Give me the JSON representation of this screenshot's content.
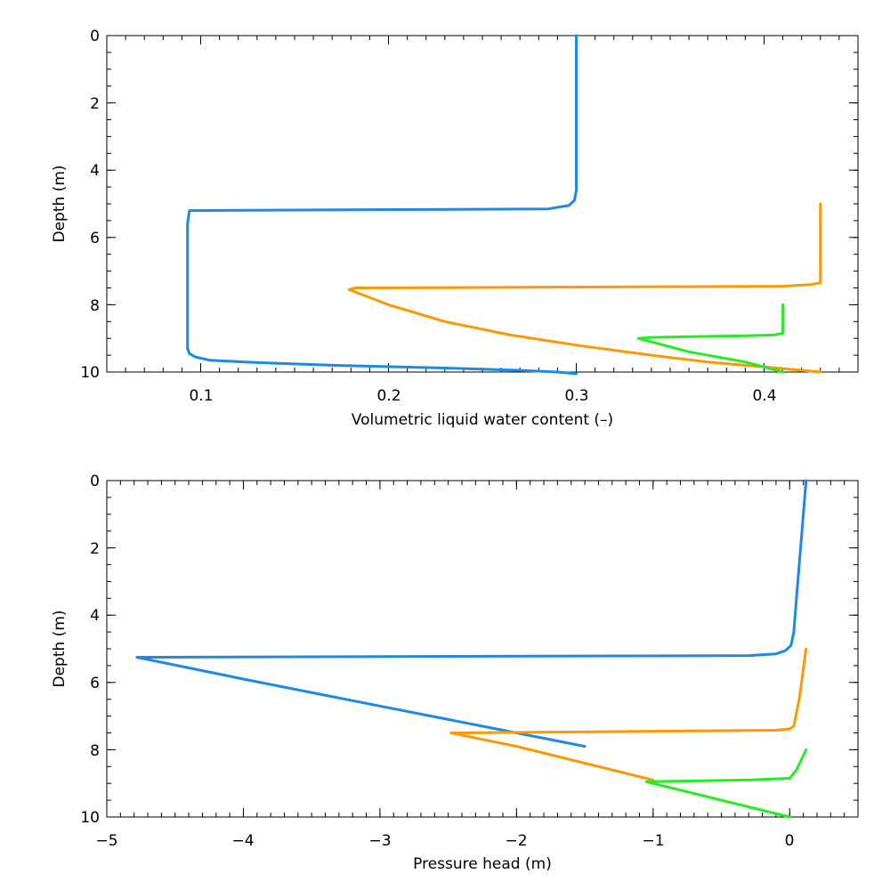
{
  "chart_data": [
    {
      "type": "line",
      "title": "",
      "xlabel": "Volumetric liquid water content (–)",
      "ylabel": "Depth (m)",
      "xlim": [
        0.05,
        0.45
      ],
      "ylim": [
        0,
        10
      ],
      "y_inverted": true,
      "xticks": [
        0.1,
        0.2,
        0.3,
        0.4
      ],
      "xtick_labels": [
        "0.1",
        "0.2",
        "0.3",
        "0.4"
      ],
      "yticks": [
        0,
        2,
        4,
        6,
        8,
        10
      ],
      "ytick_labels": [
        "0",
        "2",
        "4",
        "6",
        "8",
        "10"
      ],
      "x_minor_step": 0.01,
      "y_minor_step": 0.5,
      "series": [
        {
          "color": "#1e88e5",
          "x": [
            0.3,
            0.3,
            0.3,
            0.299,
            0.296,
            0.285,
            0.094,
            0.093,
            0.093,
            0.094,
            0.097,
            0.105,
            0.13,
            0.17,
            0.23,
            0.27,
            0.29,
            0.3
          ],
          "y": [
            0,
            3.0,
            4.6,
            4.9,
            5.05,
            5.15,
            5.2,
            5.6,
            9.3,
            9.45,
            9.55,
            9.65,
            9.72,
            9.8,
            9.88,
            9.95,
            10.0,
            10.05
          ]
        },
        {
          "color": "#ff9800",
          "x": [
            0.43,
            0.43,
            0.425,
            0.41,
            0.182,
            0.179,
            0.2,
            0.23,
            0.265,
            0.3,
            0.34,
            0.37,
            0.4,
            0.43
          ],
          "y": [
            5.0,
            7.35,
            7.4,
            7.45,
            7.5,
            7.55,
            8.0,
            8.5,
            8.9,
            9.2,
            9.5,
            9.7,
            9.85,
            10.0
          ]
        },
        {
          "color": "#22ee22",
          "x": [
            0.41,
            0.41,
            0.405,
            0.39,
            0.34,
            0.333,
            0.36,
            0.39,
            0.41
          ],
          "y": [
            8.0,
            8.85,
            8.9,
            8.92,
            8.97,
            9.0,
            9.4,
            9.7,
            10.0
          ]
        }
      ]
    },
    {
      "type": "line",
      "title": "",
      "xlabel": "Pressure head (m)",
      "ylabel": "Depth (m)",
      "xlim": [
        -5,
        0.5
      ],
      "ylim": [
        0,
        10
      ],
      "y_inverted": true,
      "xticks": [
        -5,
        -4,
        -3,
        -2,
        -1,
        0
      ],
      "xtick_labels": [
        "−5",
        "−4",
        "−3",
        "−2",
        "−1",
        "0"
      ],
      "yticks": [
        0,
        2,
        4,
        6,
        8,
        10
      ],
      "ytick_labels": [
        "0",
        "2",
        "4",
        "6",
        "8",
        "10"
      ],
      "x_minor_step": 0.1,
      "y_minor_step": 0.5,
      "series": [
        {
          "color": "#1e88e5",
          "x": [
            0.12,
            0.09,
            0.05,
            0.03,
            0.01,
            -0.03,
            -0.1,
            -0.3,
            -4.78,
            -4.0,
            -3.0,
            -2.0,
            -1.5
          ],
          "y": [
            0,
            1.5,
            3.5,
            4.5,
            4.9,
            5.05,
            5.15,
            5.2,
            5.25,
            5.9,
            6.7,
            7.5,
            7.9
          ]
        },
        {
          "color": "#ff9800",
          "x": [
            0.12,
            0.07,
            0.03,
            0.0,
            -0.1,
            -2.48,
            -2.0,
            -1.5,
            -1.0
          ],
          "y": [
            5.0,
            6.5,
            7.3,
            7.38,
            7.42,
            7.5,
            7.9,
            8.4,
            8.9
          ]
        },
        {
          "color": "#22ee22",
          "x": [
            0.12,
            0.05,
            0.0,
            -0.3,
            -1.05,
            -0.5,
            0.0
          ],
          "y": [
            8.0,
            8.6,
            8.85,
            8.9,
            8.95,
            9.5,
            10.0
          ]
        }
      ]
    }
  ]
}
